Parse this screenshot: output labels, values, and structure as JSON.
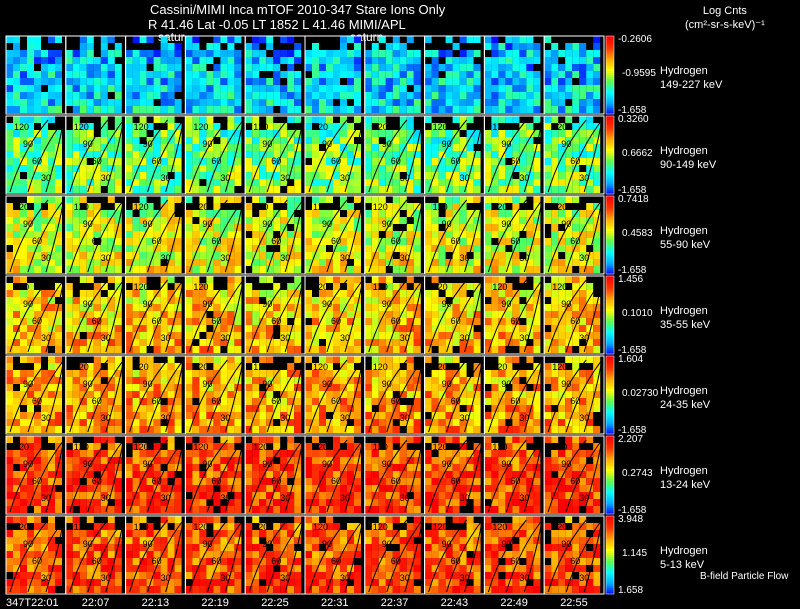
{
  "header": {
    "line1": "Cassini/MIMI Inca mTOF  2010-347   Stare   Ions Only",
    "line2": "R        41.46 Lat -0.05 LT 1852 L          41.46  MIMI/APL",
    "saturn_labels": [
      "satur",
      "saturn"
    ]
  },
  "units": {
    "line1": "Log Cnts",
    "line2": "(cm²-sr-s-keV)⁻¹"
  },
  "colors": {
    "background": "#000000",
    "grid": "#ffffff",
    "contour": "#000000",
    "colorbar": [
      "#0000ff",
      "#00aaff",
      "#00ffff",
      "#55ff55",
      "#ffff00",
      "#ffaa00",
      "#ff3300",
      "#ff0000"
    ]
  },
  "footer_note": "B-field Particle Flow",
  "chart_data": {
    "type": "heatmap",
    "title": "Cassini/MIMI Inca mTOF  2010-347   Stare   Ions Only",
    "time_labels": [
      "347T22:01",
      "22:07",
      "22:13",
      "22:19",
      "22:25",
      "22:31",
      "22:37",
      "22:43",
      "22:49",
      "22:55"
    ],
    "contour_labels": [
      "120",
      "90",
      "60",
      "30"
    ],
    "rows": [
      {
        "species": "Hydrogen",
        "energy": "149-227 keV",
        "cb_max": "-0.2606",
        "cb_mid": "-0.9595",
        "cb_min": "-1.658",
        "mean_level": 0.18
      },
      {
        "species": "Hydrogen",
        "energy": "90-149 keV",
        "cb_max": "0.3260",
        "cb_mid": "0.6662",
        "cb_min": "-1.658",
        "mean_level": 0.38
      },
      {
        "species": "Hydrogen",
        "energy": "55-90 keV",
        "cb_max": "0.7418",
        "cb_mid": "0.4583",
        "cb_min": "-1.658",
        "mean_level": 0.52
      },
      {
        "species": "Hydrogen",
        "energy": "35-55 keV",
        "cb_max": "1.456",
        "cb_mid": "0.1010",
        "cb_min": "-1.658",
        "mean_level": 0.62
      },
      {
        "species": "Hydrogen",
        "energy": "24-35 keV",
        "cb_max": "1.604",
        "cb_mid": "0.02730",
        "cb_min": "-1.658",
        "mean_level": 0.66
      },
      {
        "species": "Hydrogen",
        "energy": "13-24 keV",
        "cb_max": "2.207",
        "cb_mid": "0.2743",
        "cb_min": "-1.658",
        "mean_level": 0.82
      },
      {
        "species": "Hydrogen",
        "energy": "5-13 keV",
        "cb_max": "3.948",
        "cb_mid": "1.145",
        "cb_min": "1.658",
        "mean_level": 0.8
      }
    ]
  }
}
